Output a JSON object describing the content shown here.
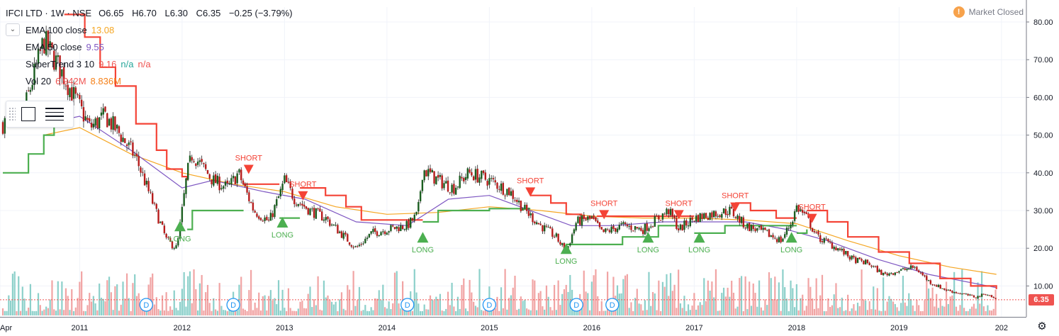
{
  "header": {
    "symbol": "IFCI LTD · 1W · NSE",
    "open": "O6.65",
    "high": "H6.70",
    "low": "L6.30",
    "close": "C6.35",
    "change": "−0.25 (−3.79%)",
    "market_status": "Market Closed"
  },
  "indicators": [
    {
      "name": "EMA 100 close",
      "values": [
        "13.08"
      ],
      "colors": [
        "#f5a623"
      ]
    },
    {
      "name": "EMA 50 close",
      "values": [
        "9.55"
      ],
      "colors": [
        "#7e57c2"
      ]
    },
    {
      "name": "SuperTrend 3 10",
      "values": [
        "9.16",
        "n/a",
        "n/a"
      ],
      "colors": [
        "#ef5350",
        "#26a69a",
        "#ef5350"
      ]
    },
    {
      "name": "Vol 20",
      "values": [
        "6.942M",
        "8.836M"
      ],
      "colors": [
        "#ef5350",
        "#f57f17"
      ]
    }
  ],
  "icons": [
    "chevron-down-icon",
    "warning-icon",
    "rectangle-tool-icon",
    "lines-tool-icon",
    "gear-icon",
    "dividend-icon"
  ],
  "colors": {
    "up": "#26a69a",
    "down": "#ef5350",
    "candle_up": "#1b5e20",
    "candle_down": "#b71c1c",
    "supertrend_up": "#4caf50",
    "supertrend_down": "#f44336",
    "ema100": "#f5a623",
    "ema50": "#7e57c2",
    "vol_up": "#80cbc4",
    "vol_down": "#ef9a9a"
  },
  "price_axis": {
    "ticks": [
      "80.00",
      "70.00",
      "60.00",
      "50.00",
      "40.00",
      "30.00",
      "20.00",
      "10.00"
    ],
    "last_price": "6.35"
  },
  "time_axis": {
    "labels": [
      "Apr",
      "2011",
      "2012",
      "2013",
      "2014",
      "2015",
      "2016",
      "2017",
      "2018",
      "2019",
      "202"
    ]
  },
  "chart_data": {
    "type": "line",
    "y_range": [
      0,
      83
    ],
    "x_range": [
      2010.25,
      2019.95
    ],
    "price_points": [
      [
        2010.25,
        53
      ],
      [
        2010.45,
        56
      ],
      [
        2010.65,
        75
      ],
      [
        2010.8,
        68
      ],
      [
        2010.95,
        60
      ],
      [
        2011.1,
        52
      ],
      [
        2011.25,
        55
      ],
      [
        2011.4,
        50
      ],
      [
        2011.55,
        44
      ],
      [
        2011.7,
        33
      ],
      [
        2011.85,
        22
      ],
      [
        2011.95,
        20
      ],
      [
        2012.05,
        40
      ],
      [
        2012.1,
        45
      ],
      [
        2012.3,
        38
      ],
      [
        2012.45,
        36
      ],
      [
        2012.55,
        40
      ],
      [
        2012.7,
        30
      ],
      [
        2012.85,
        27
      ],
      [
        2012.95,
        34
      ],
      [
        2013.0,
        38
      ],
      [
        2013.1,
        33
      ],
      [
        2013.25,
        30
      ],
      [
        2013.4,
        28
      ],
      [
        2013.55,
        24
      ],
      [
        2013.7,
        20
      ],
      [
        2013.85,
        24
      ],
      [
        2014.0,
        25
      ],
      [
        2014.2,
        26
      ],
      [
        2014.3,
        29
      ],
      [
        2014.35,
        41
      ],
      [
        2014.5,
        38
      ],
      [
        2014.65,
        36
      ],
      [
        2014.8,
        40
      ],
      [
        2015.0,
        38
      ],
      [
        2015.2,
        35
      ],
      [
        2015.35,
        30
      ],
      [
        2015.5,
        26
      ],
      [
        2015.65,
        23
      ],
      [
        2015.75,
        19
      ],
      [
        2015.85,
        27
      ],
      [
        2016.0,
        28
      ],
      [
        2016.1,
        24
      ],
      [
        2016.3,
        26
      ],
      [
        2016.5,
        25
      ],
      [
        2016.65,
        28
      ],
      [
        2016.75,
        30
      ],
      [
        2016.85,
        25
      ],
      [
        2017.0,
        28
      ],
      [
        2017.15,
        29
      ],
      [
        2017.35,
        30
      ],
      [
        2017.5,
        26
      ],
      [
        2017.7,
        24
      ],
      [
        2017.85,
        22
      ],
      [
        2017.95,
        27
      ],
      [
        2018.0,
        31
      ],
      [
        2018.1,
        28
      ],
      [
        2018.2,
        23
      ],
      [
        2018.4,
        20
      ],
      [
        2018.55,
        17
      ],
      [
        2018.7,
        16
      ],
      [
        2018.85,
        13
      ],
      [
        2019.0,
        14
      ],
      [
        2019.15,
        15
      ],
      [
        2019.3,
        11
      ],
      [
        2019.45,
        9
      ],
      [
        2019.6,
        8
      ],
      [
        2019.75,
        7
      ],
      [
        2019.85,
        8
      ],
      [
        2019.95,
        6.35
      ]
    ],
    "ema100_points": [
      [
        2010.65,
        50
      ],
      [
        2011.0,
        52
      ],
      [
        2011.5,
        45
      ],
      [
        2012.0,
        40
      ],
      [
        2012.5,
        37
      ],
      [
        2013.0,
        35
      ],
      [
        2013.5,
        31
      ],
      [
        2014.0,
        29
      ],
      [
        2014.5,
        29.5
      ],
      [
        2015.0,
        31
      ],
      [
        2015.5,
        30
      ],
      [
        2016.0,
        28.5
      ],
      [
        2016.5,
        28
      ],
      [
        2017.0,
        28
      ],
      [
        2017.5,
        27.5
      ],
      [
        2018.0,
        26.5
      ],
      [
        2018.5,
        22
      ],
      [
        2019.0,
        18
      ],
      [
        2019.5,
        15
      ],
      [
        2019.95,
        13.08
      ]
    ],
    "ema50_points": [
      [
        2010.65,
        53
      ],
      [
        2011.0,
        55
      ],
      [
        2011.5,
        46
      ],
      [
        2012.0,
        36
      ],
      [
        2012.3,
        38
      ],
      [
        2012.8,
        35
      ],
      [
        2013.2,
        33
      ],
      [
        2013.7,
        27
      ],
      [
        2014.2,
        26
      ],
      [
        2014.6,
        33
      ],
      [
        2015.0,
        34
      ],
      [
        2015.4,
        30
      ],
      [
        2015.8,
        26
      ],
      [
        2016.2,
        26
      ],
      [
        2016.7,
        27
      ],
      [
        2017.1,
        27
      ],
      [
        2017.5,
        27
      ],
      [
        2017.9,
        25
      ],
      [
        2018.3,
        22
      ],
      [
        2018.8,
        17
      ],
      [
        2019.3,
        13
      ],
      [
        2019.95,
        9.55
      ]
    ],
    "supertrend_segments": [
      {
        "dir": "up",
        "points": [
          [
            2010.25,
            40
          ],
          [
            2010.45,
            40
          ],
          [
            2010.5,
            45
          ],
          [
            2010.65,
            50
          ],
          [
            2010.75,
            54
          ]
        ]
      },
      {
        "dir": "down",
        "points": [
          [
            2010.85,
            82
          ],
          [
            2011.05,
            76
          ],
          [
            2011.2,
            68
          ],
          [
            2011.35,
            63
          ],
          [
            2011.55,
            53
          ],
          [
            2011.75,
            46
          ],
          [
            2011.85,
            41
          ],
          [
            2012.0,
            39
          ],
          [
            2012.05,
            38
          ]
        ]
      },
      {
        "dir": "up",
        "points": [
          [
            2012.05,
            25
          ],
          [
            2012.1,
            30
          ],
          [
            2012.6,
            30
          ]
        ]
      },
      {
        "dir": "down",
        "points": [
          [
            2012.6,
            37
          ],
          [
            2012.95,
            37
          ]
        ]
      },
      {
        "dir": "up",
        "points": [
          [
            2012.95,
            28
          ],
          [
            2013.15,
            28
          ]
        ]
      },
      {
        "dir": "down",
        "points": [
          [
            2013.15,
            36
          ],
          [
            2013.4,
            34
          ],
          [
            2013.6,
            31
          ],
          [
            2013.75,
            27.5
          ],
          [
            2014.35,
            27.5
          ]
        ]
      },
      {
        "dir": "up",
        "points": [
          [
            2014.35,
            27
          ],
          [
            2014.5,
            30
          ],
          [
            2015.0,
            30.5
          ],
          [
            2015.4,
            30.5
          ]
        ]
      },
      {
        "dir": "down",
        "points": [
          [
            2015.4,
            34
          ],
          [
            2015.6,
            32
          ],
          [
            2015.75,
            29
          ],
          [
            2015.9,
            28
          ],
          [
            2016.05,
            28
          ]
        ]
      },
      {
        "dir": "up",
        "points": [
          [
            2015.75,
            21
          ],
          [
            2016.0,
            21
          ],
          [
            2016.3,
            23
          ],
          [
            2016.65,
            26
          ],
          [
            2016.85,
            26
          ]
        ]
      },
      {
        "dir": "down",
        "points": [
          [
            2016.05,
            28.5
          ],
          [
            2016.85,
            28.5
          ],
          [
            2017.0,
            28.5
          ]
        ]
      },
      {
        "dir": "up",
        "points": [
          [
            2017.0,
            24
          ],
          [
            2017.3,
            26
          ],
          [
            2017.85,
            26
          ],
          [
            2018.0,
            26
          ]
        ]
      },
      {
        "dir": "down",
        "points": [
          [
            2017.4,
            32
          ],
          [
            2017.55,
            30
          ],
          [
            2017.8,
            28
          ],
          [
            2018.0,
            28
          ]
        ]
      },
      {
        "dir": "up",
        "points": [
          [
            2018.0,
            24
          ],
          [
            2018.1,
            25
          ]
        ]
      },
      {
        "dir": "down",
        "points": [
          [
            2018.1,
            30
          ],
          [
            2018.3,
            27
          ],
          [
            2018.5,
            23
          ],
          [
            2018.8,
            19
          ],
          [
            2019.1,
            16
          ],
          [
            2019.4,
            12
          ],
          [
            2019.7,
            10
          ],
          [
            2019.95,
            9.16
          ]
        ]
      }
    ],
    "signals": [
      {
        "type": "LONG",
        "x": 2011.98,
        "price": 26
      },
      {
        "type": "SHORT",
        "x": 2012.65,
        "price": 41
      },
      {
        "type": "LONG",
        "x": 2012.98,
        "price": 27
      },
      {
        "type": "SHORT",
        "x": 2013.18,
        "price": 34
      },
      {
        "type": "LONG",
        "x": 2014.35,
        "price": 23
      },
      {
        "type": "SHORT",
        "x": 2015.4,
        "price": 35
      },
      {
        "type": "LONG",
        "x": 2015.75,
        "price": 20
      },
      {
        "type": "SHORT",
        "x": 2016.12,
        "price": 29
      },
      {
        "type": "LONG",
        "x": 2016.55,
        "price": 23
      },
      {
        "type": "SHORT",
        "x": 2016.85,
        "price": 29
      },
      {
        "type": "LONG",
        "x": 2017.05,
        "price": 23
      },
      {
        "type": "SHORT",
        "x": 2017.4,
        "price": 31
      },
      {
        "type": "LONG",
        "x": 2017.95,
        "price": 23
      },
      {
        "type": "SHORT",
        "x": 2018.15,
        "price": 28
      }
    ],
    "dividend_markers": [
      2011.65,
      2012.5,
      2014.2,
      2015.0,
      2015.85,
      2016.2
    ],
    "dividend_label": "D"
  }
}
